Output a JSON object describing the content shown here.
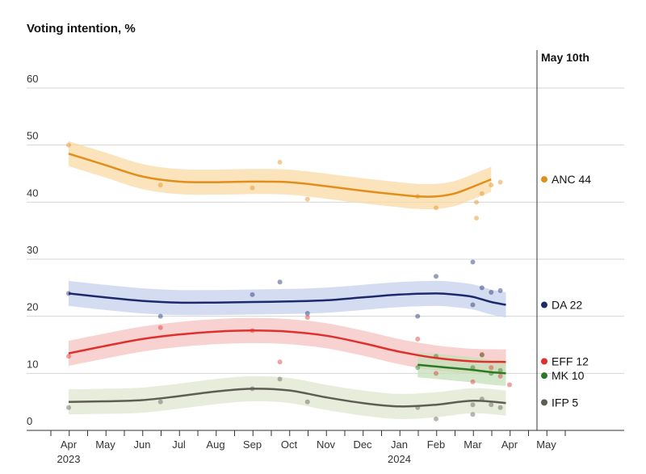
{
  "chart_data": {
    "type": "line",
    "title": "Voting intention, %",
    "xlabel": "",
    "ylabel": "",
    "ylim": [
      0,
      60
    ],
    "yticks": [
      "60",
      "50",
      "40",
      "30",
      "20",
      "10",
      "0"
    ],
    "xticks": [
      "Apr",
      "May",
      "Jun",
      "Jul",
      "Aug",
      "Sep",
      "Oct",
      "Nov",
      "Dec",
      "Jan",
      "Feb",
      "Mar",
      "Apr",
      "May"
    ],
    "year_labels": [
      "2023",
      "2024"
    ],
    "annotation": "May 10th",
    "grid": true,
    "legend": "right-end labels",
    "series": [
      {
        "name": "ANC",
        "end_label": "ANC 44",
        "color": "#e28e1a",
        "band_color": "#f9d9a6",
        "end_value": 44,
        "trend": [
          [
            0,
            48.5
          ],
          [
            2,
            46.5
          ],
          [
            4,
            44.5
          ],
          [
            6,
            43.6
          ],
          [
            8,
            43.5
          ],
          [
            10,
            43.6
          ],
          [
            12,
            43.5
          ],
          [
            14,
            42.8
          ],
          [
            16,
            42
          ],
          [
            18,
            41.3
          ],
          [
            19,
            41
          ],
          [
            20,
            41
          ],
          [
            21,
            41.5
          ],
          [
            22,
            42.7
          ],
          [
            23,
            44
          ]
        ],
        "polls": [
          [
            0,
            50
          ],
          [
            5,
            43
          ],
          [
            10,
            42.5
          ],
          [
            11.5,
            47
          ],
          [
            13,
            40.5
          ],
          [
            19,
            41
          ],
          [
            20,
            39
          ],
          [
            22.2,
            40
          ],
          [
            22.2,
            37.2
          ],
          [
            22.5,
            41.5
          ],
          [
            23,
            43
          ],
          [
            23.5,
            43.5
          ]
        ]
      },
      {
        "name": "DA",
        "end_label": "DA 22",
        "color": "#1b2a6b",
        "band_color": "#c6d0ec",
        "end_value": 22,
        "trend": [
          [
            0,
            24
          ],
          [
            2,
            23.3
          ],
          [
            4,
            22.7
          ],
          [
            6,
            22.4
          ],
          [
            8,
            22.4
          ],
          [
            10,
            22.5
          ],
          [
            12,
            22.6
          ],
          [
            14,
            22.8
          ],
          [
            16,
            23.3
          ],
          [
            18,
            23.8
          ],
          [
            20,
            24
          ],
          [
            21,
            23.8
          ],
          [
            22,
            23.4
          ],
          [
            23,
            22.5
          ],
          [
            23.8,
            22
          ]
        ],
        "polls": [
          [
            0,
            24
          ],
          [
            5,
            20
          ],
          [
            10,
            23.8
          ],
          [
            11.5,
            26
          ],
          [
            13,
            20.5
          ],
          [
            19,
            20
          ],
          [
            20,
            27
          ],
          [
            22,
            29.5
          ],
          [
            22,
            22
          ],
          [
            22.5,
            25
          ],
          [
            23,
            24.2
          ],
          [
            23.5,
            24.5
          ]
        ]
      },
      {
        "name": "EFF",
        "end_label": "EFF 12",
        "color": "#e0302d",
        "band_color": "#f6c3c0",
        "end_value": 12,
        "trend": [
          [
            0,
            13.5
          ],
          [
            2,
            14.8
          ],
          [
            4,
            16
          ],
          [
            6,
            16.8
          ],
          [
            8,
            17.3
          ],
          [
            10,
            17.5
          ],
          [
            12,
            17.3
          ],
          [
            14,
            16.6
          ],
          [
            16,
            15.3
          ],
          [
            18,
            13.8
          ],
          [
            20,
            12.7
          ],
          [
            22,
            12.1
          ],
          [
            23.8,
            12
          ]
        ],
        "polls": [
          [
            0,
            13
          ],
          [
            5,
            18
          ],
          [
            10,
            17.5
          ],
          [
            11.5,
            12
          ],
          [
            13,
            19.8
          ],
          [
            19,
            16
          ],
          [
            20,
            10
          ],
          [
            22,
            8.5
          ],
          [
            22.5,
            13.3
          ],
          [
            23,
            11
          ],
          [
            23.5,
            9.5
          ],
          [
            24,
            8
          ]
        ]
      },
      {
        "name": "MK",
        "end_label": "MK 10",
        "color": "#2a7a24",
        "band_color": "#c4e0b8",
        "end_value": 10,
        "trend": [
          [
            19,
            11.5
          ],
          [
            20,
            11.2
          ],
          [
            21,
            10.9
          ],
          [
            22,
            10.6
          ],
          [
            23,
            10.2
          ],
          [
            23.8,
            10
          ]
        ],
        "polls": [
          [
            19,
            11
          ],
          [
            20,
            13
          ],
          [
            22,
            11
          ],
          [
            22.5,
            13.2
          ],
          [
            23,
            10
          ],
          [
            23.5,
            10.5
          ]
        ]
      },
      {
        "name": "IFP",
        "end_label": "IFP 5",
        "color": "#5e5d52",
        "band_color": "#dfe5cf",
        "end_value": 5,
        "trend": [
          [
            0,
            5
          ],
          [
            2,
            5.1
          ],
          [
            4,
            5.3
          ],
          [
            6,
            6
          ],
          [
            8,
            6.8
          ],
          [
            10,
            7.3
          ],
          [
            12,
            7
          ],
          [
            14,
            5.8
          ],
          [
            16,
            4.8
          ],
          [
            18,
            4.2
          ],
          [
            20,
            4.5
          ],
          [
            22,
            5.2
          ],
          [
            23.8,
            4.8
          ]
        ],
        "polls": [
          [
            0,
            4
          ],
          [
            5,
            5
          ],
          [
            10,
            7.3
          ],
          [
            11.5,
            9
          ],
          [
            13,
            5
          ],
          [
            19,
            4
          ],
          [
            20,
            2
          ],
          [
            22,
            2.8
          ],
          [
            22,
            4.5
          ],
          [
            22.5,
            5.5
          ],
          [
            23,
            4.5
          ],
          [
            23.5,
            4
          ]
        ]
      }
    ]
  }
}
